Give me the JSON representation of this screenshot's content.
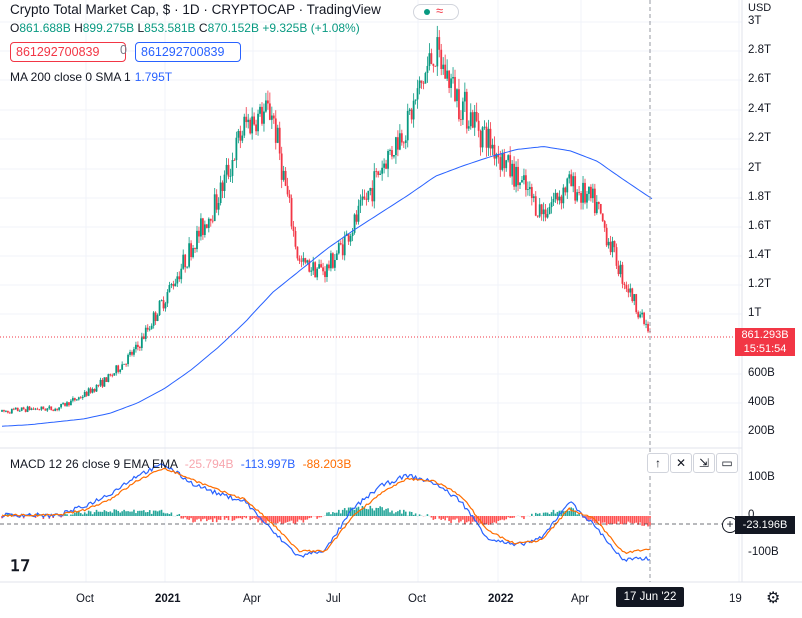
{
  "header": {
    "title": "Crypto Total Market Cap, $ · 1D · CRYPTOCAP · TradingView",
    "ohlc": {
      "o_key": "O",
      "o_val": "861.688B",
      "h_key": "H",
      "h_val": "899.275B",
      "l_key": "L",
      "l_val": "853.581B",
      "c_key": "C",
      "c_val": "870.152B",
      "change": "+9.325B (+1.08%)"
    },
    "sell_price": "861292700839",
    "spread": "0",
    "buy_price": "861292700839"
  },
  "indicators": {
    "ma_label": "MA 200 close 0 SMA 1",
    "ma_value": "1.795T",
    "macd_label": "MACD 12 26 close 9 EMA EMA",
    "macd_hist": "-25.794B",
    "macd_line": "-113.997B",
    "macd_signal": "-88.203B"
  },
  "price_axis": {
    "currency": "USD",
    "labels": [
      "3T",
      "2.8T",
      "2.6T",
      "2.4T",
      "2.2T",
      "2T",
      "1.8T",
      "1.6T",
      "1.4T",
      "1.2T",
      "1T",
      "600B",
      "400B",
      "200B"
    ],
    "last_price": "861.293B",
    "countdown": "15:51:54"
  },
  "macd_axis": {
    "labels": [
      "100B",
      "0",
      "-100B"
    ],
    "current": "-23.196B"
  },
  "time_axis": {
    "labels": [
      {
        "text": "Oct",
        "bold": false
      },
      {
        "text": "2021",
        "bold": true
      },
      {
        "text": "Apr",
        "bold": false
      },
      {
        "text": "Jul",
        "bold": false
      },
      {
        "text": "Oct",
        "bold": false
      },
      {
        "text": "2022",
        "bold": true
      },
      {
        "text": "Apr",
        "bold": false
      },
      {
        "text": "19",
        "bold": false
      }
    ],
    "crosshair_date": "17 Jun '22"
  },
  "colors": {
    "up": "#089981",
    "down": "#f23645",
    "ma": "#2962ff",
    "macd_line": "#2962ff",
    "signal_line": "#ff6d00"
  },
  "icons": {
    "scroll_up": "arrow-up-icon",
    "close": "close-icon",
    "collapse": "collapse-icon",
    "restore": "restore-icon",
    "settings": "gear-icon",
    "add": "plus-icon",
    "logo": "tradingview-logo-icon"
  },
  "chart_data": {
    "type": "candlestick",
    "title": "Crypto Total Market Cap, $",
    "interval": "1D",
    "x_range": [
      "2020-08",
      "2022-07"
    ],
    "monthly_close_T": [
      0.34,
      0.36,
      0.36,
      0.45,
      0.58,
      0.77,
      1.1,
      1.45,
      1.8,
      2.3,
      2.4,
      1.35,
      1.3,
      1.6,
      2.0,
      2.3,
      2.8,
      2.45,
      2.2,
      1.95,
      1.7,
      1.9,
      1.75,
      1.25,
      0.86
    ],
    "ma200_T": [
      0.24,
      0.25,
      0.27,
      0.29,
      0.33,
      0.4,
      0.5,
      0.63,
      0.78,
      0.95,
      1.15,
      1.3,
      1.45,
      1.58,
      1.7,
      1.82,
      1.95,
      2.02,
      2.08,
      2.13,
      2.15,
      2.12,
      2.05,
      1.92,
      1.795
    ],
    "macd_B": [
      2,
      3,
      0,
      25,
      60,
      110,
      140,
      90,
      60,
      40,
      -40,
      -110,
      -90,
      20,
      80,
      110,
      90,
      40,
      -60,
      -80,
      -60,
      40,
      -30,
      -120,
      -114
    ],
    "signal_B": [
      2,
      2,
      2,
      15,
      45,
      95,
      130,
      100,
      70,
      45,
      -20,
      -95,
      -95,
      0,
      60,
      100,
      95,
      55,
      -40,
      -75,
      -65,
      20,
      -10,
      -100,
      -88
    ],
    "histogram_B": [
      0,
      1,
      -2,
      10,
      15,
      15,
      10,
      -10,
      -10,
      -5,
      -20,
      -15,
      5,
      20,
      20,
      10,
      -5,
      -15,
      -20,
      -5,
      5,
      20,
      -20,
      -20,
      -26
    ]
  }
}
